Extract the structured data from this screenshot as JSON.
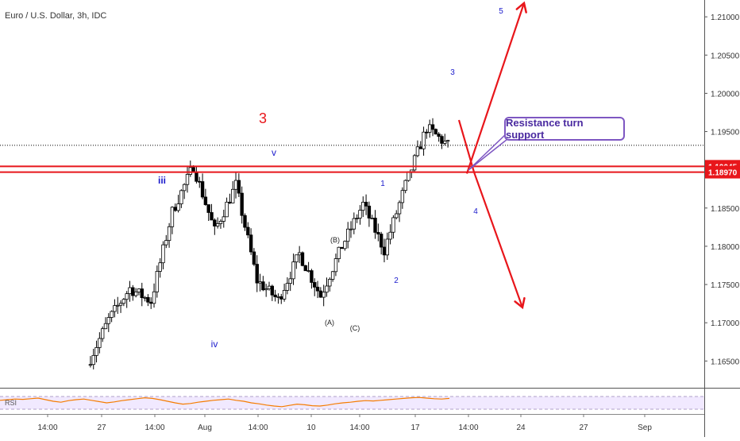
{
  "chart_data": {
    "type": "candlestick",
    "title": "Euro / U.S. Dollar, 3h, IDC",
    "ylim": [
      1.1615,
      1.2122
    ],
    "y_ticks": [
      "1.16500",
      "1.17000",
      "1.17500",
      "1.18000",
      "1.18500",
      "1.19000",
      "1.19500",
      "1.20000",
      "1.20500",
      "1.21000"
    ],
    "x_tick_labels": [
      "14:00",
      "27",
      "14:00",
      "Aug",
      "14:00",
      "10",
      "14:00",
      "17",
      "14:00",
      "24",
      "27",
      "Sep"
    ],
    "price_labels": [
      {
        "value": 1.19045,
        "label": "1.19045",
        "color": "#e8161b"
      },
      {
        "value": 1.1897,
        "label": "1.18970",
        "color": "#e8161b"
      }
    ],
    "resistance_levels": [
      1.19045,
      1.1897
    ],
    "current_price": 1.1932,
    "wave_labels": [
      {
        "text": "3",
        "color": "#e8161b"
      },
      {
        "text": "iii",
        "color": "#1a1acc"
      },
      {
        "text": "iv",
        "color": "#1a1acc"
      },
      {
        "text": "v",
        "color": "#1a1acc"
      },
      {
        "text": "(A)",
        "color": "#222222"
      },
      {
        "text": "(B)",
        "color": "#222222"
      },
      {
        "text": "(C)",
        "color": "#222222"
      },
      {
        "text": "1",
        "color": "#1a1acc"
      },
      {
        "text": "2",
        "color": "#1a1acc"
      },
      {
        "text": "3",
        "color": "#1a1acc"
      },
      {
        "text": "4",
        "color": "#1a1acc"
      },
      {
        "text": "5",
        "color": "#1a1acc"
      }
    ],
    "annotation": "Resistance turn support",
    "path_waypoints": [
      {
        "start": 1.1645,
        "end": 1.1704
      },
      {
        "start": 1.1704,
        "end": 1.1745
      },
      {
        "start": 1.1745,
        "end": 1.1728
      },
      {
        "start": 1.1728,
        "end": 1.1845
      },
      {
        "start": 1.1845,
        "end": 1.1905
      },
      {
        "start": 1.1905,
        "end": 1.182
      },
      {
        "start": 1.182,
        "end": 1.188
      },
      {
        "start": 1.188,
        "end": 1.1755
      },
      {
        "start": 1.1755,
        "end": 1.173
      },
      {
        "start": 1.173,
        "end": 1.179
      },
      {
        "start": 1.179,
        "end": 1.1735
      },
      {
        "start": 1.1735,
        "end": 1.18
      },
      {
        "start": 1.18,
        "end": 1.1855
      },
      {
        "start": 1.1855,
        "end": 1.1795
      },
      {
        "start": 1.1795,
        "end": 1.188
      },
      {
        "start": 1.188,
        "end": 1.1955
      },
      {
        "start": 1.1955,
        "end": 1.1932
      }
    ],
    "scenarios": [
      {
        "name": "bullish",
        "color": "#e8161b",
        "points": [
          1.1895,
          1.2118
        ]
      },
      {
        "name": "bearish",
        "color": "#e8161b",
        "points": [
          1.1965,
          1.1897,
          1.172
        ]
      }
    ],
    "indicator": {
      "label": "RSI",
      "bounds": [
        30,
        70
      ],
      "values": [
        58,
        60,
        62,
        61,
        63,
        65,
        60,
        55,
        52,
        57,
        60,
        62,
        58,
        54,
        50,
        53,
        57,
        60,
        63,
        66,
        64,
        60,
        55,
        50,
        46,
        48,
        52,
        55,
        58,
        60,
        62,
        58,
        55,
        50,
        47,
        43,
        40,
        38,
        42,
        46,
        44,
        41,
        40,
        43,
        47,
        50,
        52,
        55,
        57,
        56,
        58,
        60,
        62,
        64,
        66,
        67,
        65,
        63,
        62,
        64
      ]
    },
    "grid": true
  }
}
